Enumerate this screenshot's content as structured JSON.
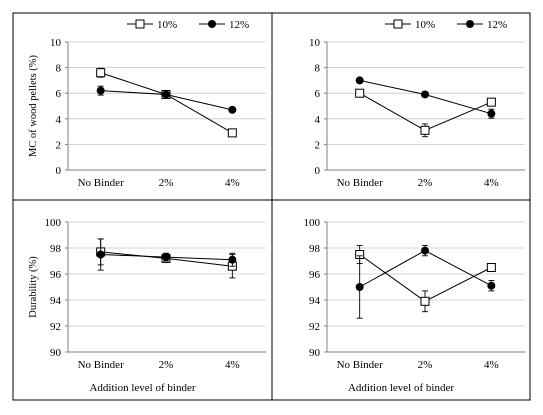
{
  "chart_data": [
    {
      "type": "line",
      "ylabel": "MC of wood pellets (%)",
      "xlabel": "",
      "categories": [
        "No Binder",
        "2%",
        "4%"
      ],
      "ylim": [
        0,
        10
      ],
      "yticks": [
        0,
        2,
        4,
        6,
        8,
        10
      ],
      "legend": "top-right",
      "series": [
        {
          "name": "10%",
          "values": [
            7.6,
            5.9,
            2.9
          ],
          "errors": [
            0.35,
            0.15,
            0.15
          ],
          "marker": "open-square"
        },
        {
          "name": "12%",
          "values": [
            6.2,
            5.9,
            4.7
          ],
          "errors": [
            0.35,
            0.15,
            0.1
          ],
          "marker": "filled-circle"
        }
      ]
    },
    {
      "type": "line",
      "ylabel": "",
      "xlabel": "",
      "categories": [
        "No Binder",
        "2%",
        "4%"
      ],
      "ylim": [
        0,
        10
      ],
      "yticks": [
        0,
        2,
        4,
        6,
        8,
        10
      ],
      "legend": "top-right",
      "series": [
        {
          "name": "10%",
          "values": [
            6.0,
            3.1,
            5.3
          ],
          "errors": [
            0.15,
            0.5,
            0.15
          ],
          "marker": "open-square"
        },
        {
          "name": "12%",
          "values": [
            7.0,
            5.9,
            4.4
          ],
          "errors": [
            0.1,
            0.1,
            0.35
          ],
          "marker": "filled-circle"
        }
      ]
    },
    {
      "type": "line",
      "ylabel": "Durability (%)",
      "xlabel": "Addition  level  of binder",
      "categories": [
        "No Binder",
        "2%",
        "4%"
      ],
      "ylim": [
        90,
        100
      ],
      "yticks": [
        90,
        92,
        94,
        96,
        98,
        100
      ],
      "legend": "",
      "series": [
        {
          "name": "10%",
          "values": [
            97.7,
            97.2,
            96.6
          ],
          "errors": [
            1.0,
            0.3,
            0.9
          ],
          "marker": "open-square"
        },
        {
          "name": "12%",
          "values": [
            97.5,
            97.3,
            97.1
          ],
          "errors": [
            1.2,
            0.3,
            0.5
          ],
          "marker": "filled-circle"
        }
      ]
    },
    {
      "type": "line",
      "ylabel": "",
      "xlabel": "Addition  level  of binder",
      "categories": [
        "No Binder",
        "2%",
        "4%"
      ],
      "ylim": [
        90,
        100
      ],
      "yticks": [
        90,
        92,
        94,
        96,
        98,
        100
      ],
      "legend": "",
      "series": [
        {
          "name": "10%",
          "values": [
            97.5,
            93.9,
            96.5
          ],
          "errors": [
            0.7,
            0.8,
            0.1
          ],
          "marker": "open-square"
        },
        {
          "name": "12%",
          "values": [
            95.0,
            97.8,
            95.1
          ],
          "errors": [
            2.4,
            0.4,
            0.4
          ],
          "marker": "filled-circle"
        }
      ]
    }
  ]
}
